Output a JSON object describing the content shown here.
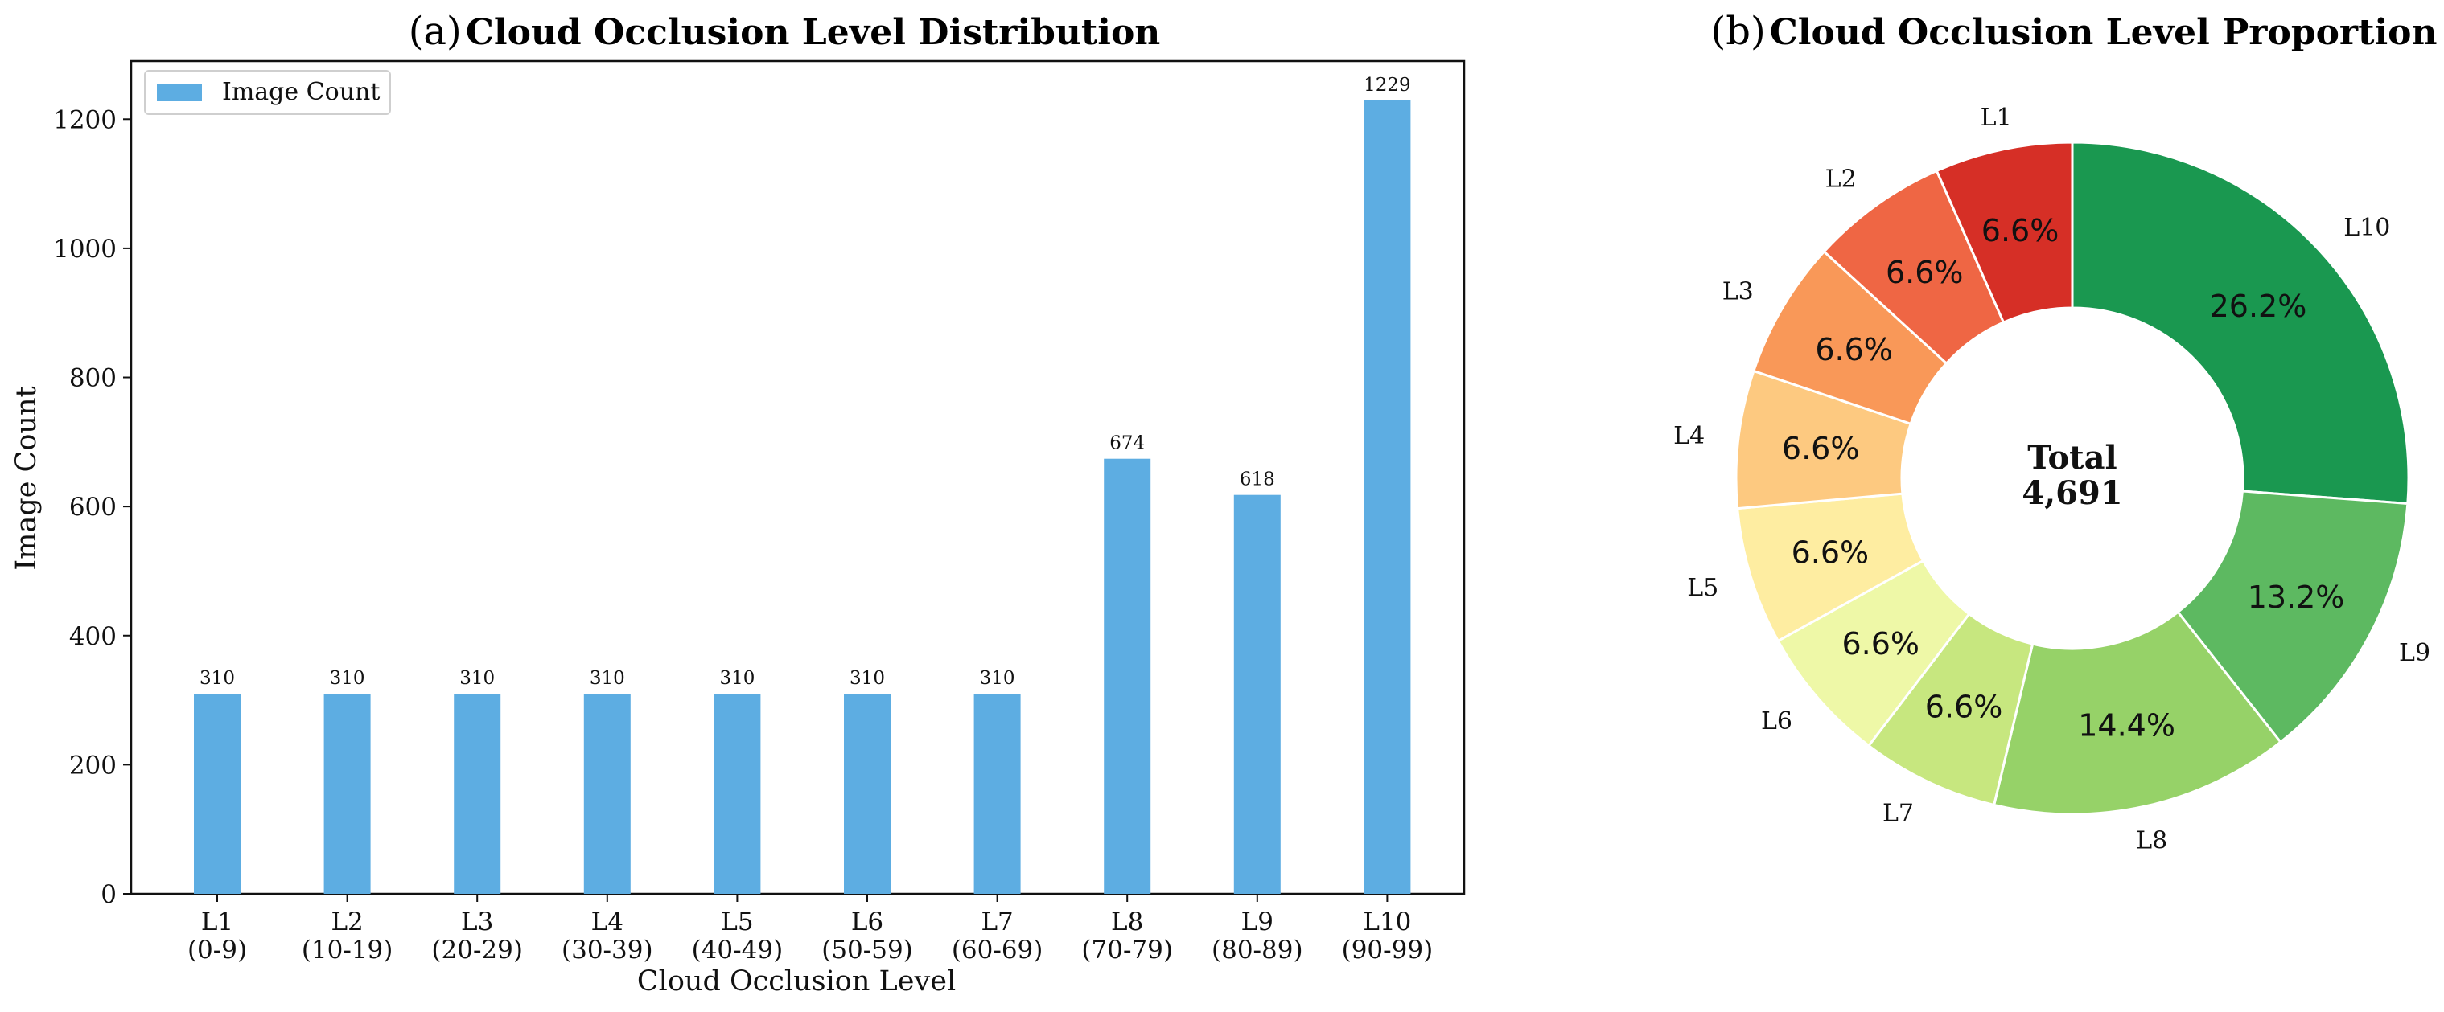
{
  "chart_data": [
    {
      "type": "bar",
      "title_prefix": "(a)",
      "title": "Cloud Occlusion Level Distribution",
      "xlabel": "Cloud Occlusion Level",
      "ylabel": "Image Count",
      "categories": [
        [
          "L1",
          "(0-9)"
        ],
        [
          "L2",
          "(10-19)"
        ],
        [
          "L3",
          "(20-29)"
        ],
        [
          "L4",
          "(30-39)"
        ],
        [
          "L5",
          "(40-49)"
        ],
        [
          "L6",
          "(50-59)"
        ],
        [
          "L7",
          "(60-69)"
        ],
        [
          "L8",
          "(70-79)"
        ],
        [
          "L9",
          "(80-89)"
        ],
        [
          "L10",
          "(90-99)"
        ]
      ],
      "series": [
        {
          "name": "Image Count",
          "values": [
            310,
            310,
            310,
            310,
            310,
            310,
            310,
            674,
            618,
            1229
          ],
          "color": "#5DADE2"
        }
      ],
      "ylim": [
        0,
        1290
      ],
      "yticks": [
        0,
        200,
        400,
        600,
        800,
        1000,
        1200
      ],
      "legend_position": "upper-left",
      "grid": false
    },
    {
      "type": "pie",
      "style": "donut",
      "title_prefix": "(b)",
      "title": "Cloud Occlusion Level Proportion",
      "center_text": [
        "Total",
        "4,691"
      ],
      "slices": [
        {
          "label": "L10",
          "value": 1229,
          "pct": "26.2%",
          "color": "#1A9850"
        },
        {
          "label": "L9",
          "value": 618,
          "pct": "13.2%",
          "color": "#5DB961"
        },
        {
          "label": "L8",
          "value": 674,
          "pct": "14.4%",
          "color": "#96D268"
        },
        {
          "label": "L7",
          "value": 310,
          "pct": "6.6%",
          "color": "#C7E77F"
        },
        {
          "label": "L6",
          "value": 310,
          "pct": "6.6%",
          "color": "#EEF8A7"
        },
        {
          "label": "L5",
          "value": 310,
          "pct": "6.6%",
          "color": "#FEEDA1"
        },
        {
          "label": "L4",
          "value": 310,
          "pct": "6.6%",
          "color": "#FDC980"
        },
        {
          "label": "L3",
          "value": 310,
          "pct": "6.6%",
          "color": "#F99858"
        },
        {
          "label": "L2",
          "value": 310,
          "pct": "6.6%",
          "color": "#EF6644"
        },
        {
          "label": "L1",
          "value": 310,
          "pct": "6.6%",
          "color": "#D62F26"
        }
      ],
      "start_angle_deg": 90,
      "direction": "clockwise"
    }
  ]
}
